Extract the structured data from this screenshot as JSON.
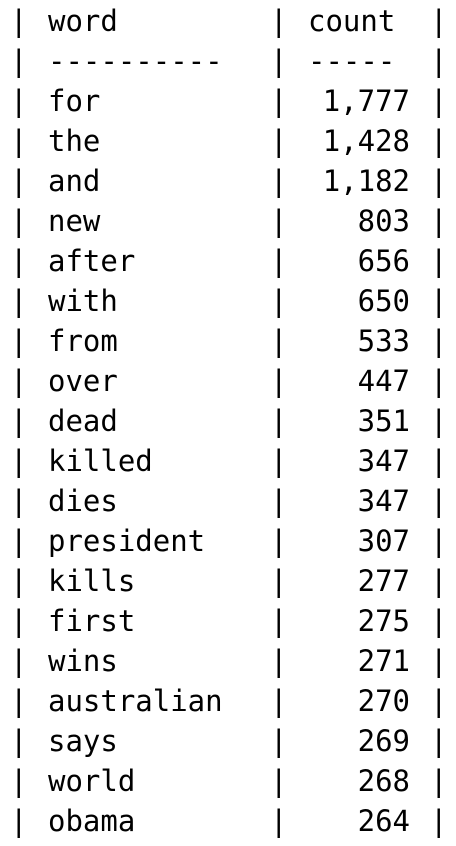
{
  "table": {
    "header": {
      "word": "word",
      "count": "count"
    },
    "separator": {
      "word": "----------",
      "count": "-----"
    },
    "pipe": "|",
    "rows": [
      {
        "word": "for",
        "count": "1,777"
      },
      {
        "word": "the",
        "count": "1,428"
      },
      {
        "word": "and",
        "count": "1,182"
      },
      {
        "word": "new",
        "count": "803"
      },
      {
        "word": "after",
        "count": "656"
      },
      {
        "word": "with",
        "count": "650"
      },
      {
        "word": "from",
        "count": "533"
      },
      {
        "word": "over",
        "count": "447"
      },
      {
        "word": "dead",
        "count": "351"
      },
      {
        "word": "killed",
        "count": "347"
      },
      {
        "word": "dies",
        "count": "347"
      },
      {
        "word": "president",
        "count": "307"
      },
      {
        "word": "kills",
        "count": "277"
      },
      {
        "word": "first",
        "count": "275"
      },
      {
        "word": "wins",
        "count": "271"
      },
      {
        "word": "australian",
        "count": "270"
      },
      {
        "word": "says",
        "count": "269"
      },
      {
        "word": "world",
        "count": "268"
      },
      {
        "word": "obama",
        "count": "264"
      }
    ]
  }
}
